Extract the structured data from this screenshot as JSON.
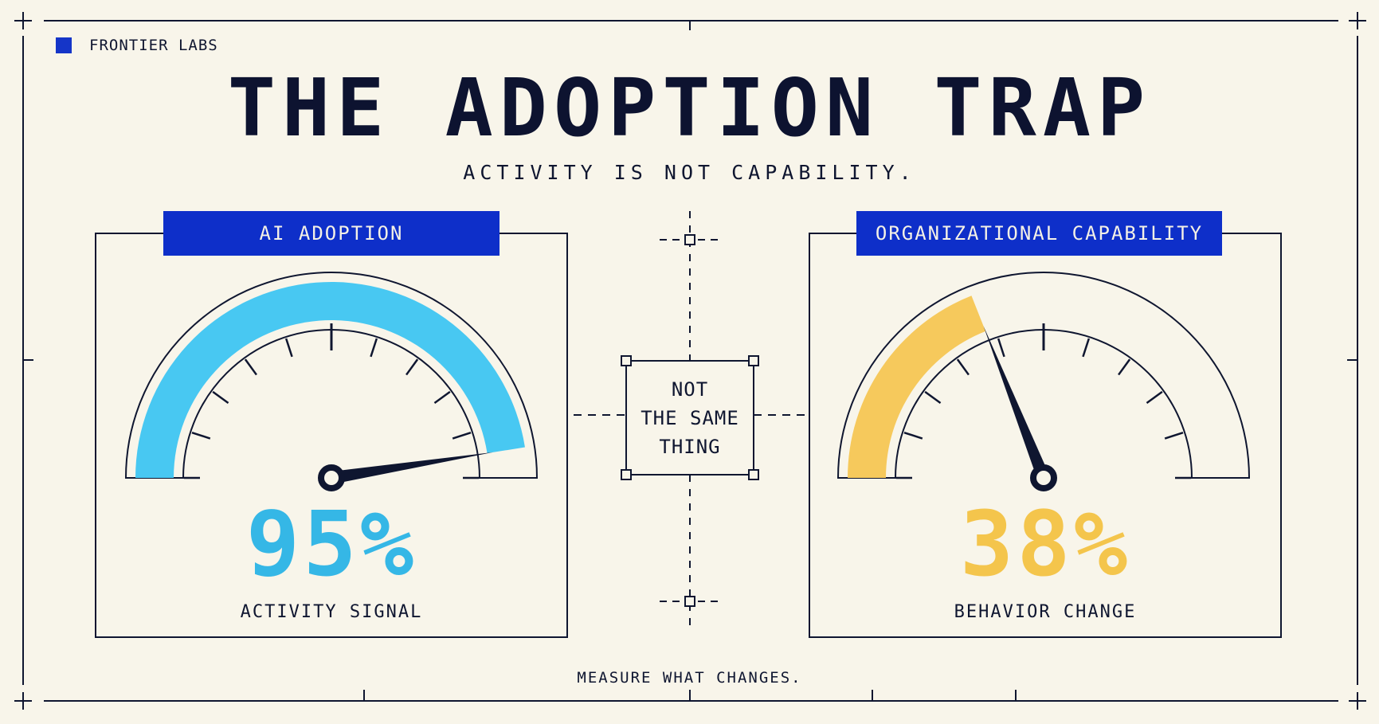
{
  "brand": {
    "name": "FRONTIER LABS",
    "accent_color": "#1535c8"
  },
  "header": {
    "title": "THE ADOPTION TRAP",
    "subtitle": "ACTIVITY IS NOT CAPABILITY."
  },
  "left_panel": {
    "label": "AI ADOPTION",
    "value_text": "95%",
    "value": 0.95,
    "caption": "ACTIVITY SIGNAL",
    "color": "#48c8f2"
  },
  "right_panel": {
    "label": "ORGANIZATIONAL CAPABILITY",
    "value_text": "38%",
    "value": 0.38,
    "caption": "BEHAVIOR CHANGE",
    "color": "#f6c95c"
  },
  "center": {
    "lines": [
      "NOT",
      "THE SAME",
      "THING"
    ]
  },
  "footer": {
    "text": "MEASURE WHAT CHANGES."
  },
  "colors": {
    "background": "#f8f5ea",
    "ink": "#0f1630",
    "label_bg": "#0e2fc9",
    "left_fill": "#48c8f2",
    "right_fill": "#f6c95c",
    "left_value_color": "#35b7e6",
    "right_value_color": "#f4c54c"
  }
}
